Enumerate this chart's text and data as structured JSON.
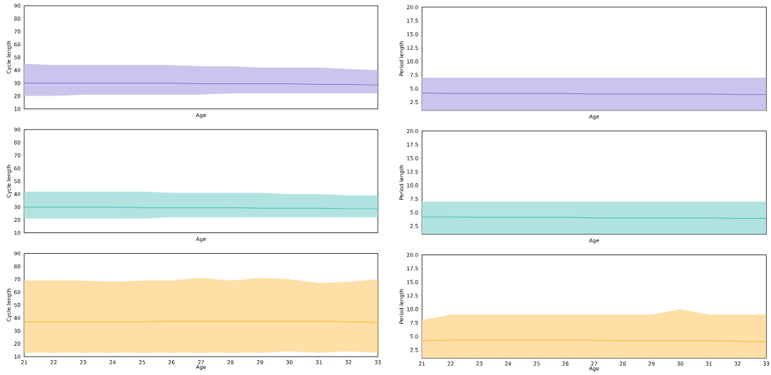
{
  "chart_data": [
    {
      "type": "line",
      "xlabel": "Age",
      "ylabel": "Cycle length",
      "x": [
        21,
        22,
        23,
        24,
        25,
        26,
        27,
        28,
        29,
        30,
        31,
        32,
        33
      ],
      "xlim": [
        21,
        33
      ],
      "xticks": [
        21,
        22,
        23,
        24,
        25,
        26,
        27,
        28,
        29,
        30,
        31,
        32,
        33
      ],
      "ylim": [
        10,
        90
      ],
      "yticks": [
        10,
        20,
        30,
        40,
        50,
        60,
        70,
        80,
        90
      ],
      "tick_labels": "y",
      "series": [
        {
          "color": "#6a5acd",
          "values": [
            30,
            30,
            30,
            30,
            30,
            30,
            29.5,
            29.5,
            29.5,
            29.5,
            29,
            29,
            28.5
          ],
          "lower": [
            20,
            20,
            21,
            21,
            21,
            21,
            21,
            22,
            22,
            22,
            22,
            22,
            22
          ],
          "upper": [
            45,
            44,
            44,
            44,
            44,
            44,
            43,
            43,
            42,
            42,
            42,
            41,
            40
          ]
        }
      ]
    },
    {
      "type": "line",
      "xlabel": "Age",
      "ylabel": "Period length",
      "x": [
        21,
        22,
        23,
        24,
        25,
        26,
        27,
        28,
        29,
        30,
        31,
        32,
        33
      ],
      "xlim": [
        21,
        33
      ],
      "xticks": [
        21,
        22,
        23,
        24,
        25,
        26,
        27,
        28,
        29,
        30,
        31,
        32,
        33
      ],
      "ylim": [
        1,
        20
      ],
      "yticks": [
        2.5,
        {
          "value": 5,
          "label": "5.0"
        },
        7.5,
        {
          "value": 10,
          "label": "10.0"
        },
        12.5,
        {
          "value": 15,
          "label": "15.0"
        },
        17.5,
        {
          "value": 20,
          "label": "20.0"
        }
      ],
      "tick_labels": "y",
      "series": [
        {
          "color": "#6a5acd",
          "values": [
            4.2,
            4.1,
            4.1,
            4.1,
            4.1,
            4.1,
            4.0,
            4.0,
            4.0,
            4.0,
            4.0,
            3.9,
            3.9
          ],
          "lower": [
            1,
            1,
            1,
            1,
            1,
            1,
            1,
            1,
            1,
            1,
            1,
            1,
            1
          ],
          "upper": [
            7,
            7,
            7,
            7,
            7,
            7,
            7,
            7,
            7,
            7,
            7,
            7,
            7
          ]
        }
      ]
    },
    {
      "type": "line",
      "xlabel": "Age",
      "ylabel": "Cycle length",
      "x": [
        21,
        22,
        23,
        24,
        25,
        26,
        27,
        28,
        29,
        30,
        31,
        32,
        33
      ],
      "xlim": [
        21,
        33
      ],
      "xticks": [
        21,
        22,
        23,
        24,
        25,
        26,
        27,
        28,
        29,
        30,
        31,
        32,
        33
      ],
      "ylim": [
        10,
        90
      ],
      "yticks": [
        10,
        20,
        30,
        40,
        50,
        60,
        70,
        80,
        90
      ],
      "tick_labels": "y",
      "series": [
        {
          "color": "#20b2aa",
          "values": [
            30,
            30,
            30,
            30,
            29.5,
            29.5,
            29.5,
            29.5,
            29,
            29,
            29,
            28.5,
            28.5
          ],
          "lower": [
            21,
            21,
            21,
            21,
            21,
            22,
            22,
            22,
            22,
            22,
            22,
            22,
            22
          ],
          "upper": [
            42,
            42,
            42,
            42,
            42,
            41,
            41,
            41,
            41,
            40,
            40,
            39,
            39
          ]
        }
      ]
    },
    {
      "type": "line",
      "xlabel": "Age",
      "ylabel": "Period length",
      "x": [
        21,
        22,
        23,
        24,
        25,
        26,
        27,
        28,
        29,
        30,
        31,
        32,
        33
      ],
      "xlim": [
        21,
        33
      ],
      "xticks": [
        21,
        22,
        23,
        24,
        25,
        26,
        27,
        28,
        29,
        30,
        31,
        32,
        33
      ],
      "ylim": [
        1,
        20
      ],
      "yticks": [
        2.5,
        {
          "value": 5,
          "label": "5.0"
        },
        7.5,
        {
          "value": 10,
          "label": "10.0"
        },
        12.5,
        {
          "value": 15,
          "label": "15.0"
        },
        17.5,
        {
          "value": 20,
          "label": "20.0"
        }
      ],
      "tick_labels": "y",
      "series": [
        {
          "color": "#20b2aa",
          "values": [
            4.2,
            4.2,
            4.1,
            4.1,
            4.1,
            4.1,
            4.0,
            4.0,
            4.0,
            4.0,
            4.0,
            3.9,
            3.9
          ],
          "lower": [
            1,
            1,
            1,
            1,
            1,
            1,
            1,
            1,
            1,
            1,
            1,
            1,
            1
          ],
          "upper": [
            7,
            7,
            7,
            7,
            7,
            7,
            7,
            7,
            7,
            7,
            7,
            7,
            7
          ]
        }
      ]
    },
    {
      "type": "line",
      "xlabel": "Age",
      "ylabel": "Cycle length",
      "x": [
        21,
        22,
        23,
        24,
        25,
        26,
        27,
        28,
        29,
        30,
        31,
        32,
        33
      ],
      "xlim": [
        21,
        33
      ],
      "xticks": [
        21,
        22,
        23,
        24,
        25,
        26,
        27,
        28,
        29,
        30,
        31,
        32,
        33
      ],
      "ylim": [
        10,
        90
      ],
      "yticks": [
        10,
        20,
        30,
        40,
        50,
        60,
        70,
        80,
        90
      ],
      "series": [
        {
          "color": "#ffa500",
          "values": [
            37,
            37,
            37,
            37,
            37,
            37.5,
            37.5,
            37.5,
            37.5,
            37.5,
            37.5,
            37,
            36.5
          ],
          "lower": [
            13,
            13,
            13,
            13,
            13,
            13,
            13,
            13,
            13,
            14,
            13,
            14,
            13
          ],
          "upper": [
            69,
            69,
            69,
            68,
            69,
            69,
            71,
            69,
            71,
            70,
            67,
            68,
            70
          ]
        }
      ]
    },
    {
      "type": "line",
      "xlabel": "Age",
      "ylabel": "Period length",
      "x": [
        21,
        22,
        23,
        24,
        25,
        26,
        27,
        28,
        29,
        30,
        31,
        32,
        33
      ],
      "xlim": [
        21,
        33
      ],
      "xticks": [
        21,
        22,
        23,
        24,
        25,
        26,
        27,
        28,
        29,
        30,
        31,
        32,
        33
      ],
      "ylim": [
        1,
        20
      ],
      "yticks": [
        2.5,
        {
          "value": 5,
          "label": "5.0"
        },
        7.5,
        {
          "value": 10,
          "label": "10.0"
        },
        12.5,
        {
          "value": 15,
          "label": "15.0"
        },
        17.5,
        {
          "value": 20,
          "label": "20.0"
        }
      ],
      "series": [
        {
          "color": "#ffa500",
          "values": [
            4.2,
            4.3,
            4.3,
            4.3,
            4.3,
            4.3,
            4.3,
            4.2,
            4.2,
            4.2,
            4.2,
            4.1,
            4.0
          ],
          "lower": [
            1,
            1,
            1,
            1,
            1,
            1,
            1,
            1,
            1,
            1,
            1,
            1,
            1
          ],
          "upper": [
            8,
            9,
            9,
            9,
            9,
            9,
            9,
            9,
            9,
            10,
            9,
            9,
            9
          ]
        }
      ]
    }
  ]
}
